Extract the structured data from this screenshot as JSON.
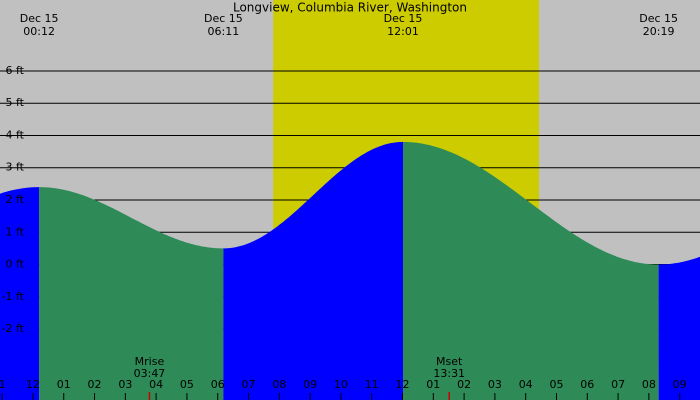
{
  "chart_data": {
    "type": "tide",
    "title": "Longview, Columbia River, Washington",
    "background": "#c0c0c0",
    "daylight_color": "#cccc00",
    "rising_color": "#0000ff",
    "falling_color": "#2e8b57",
    "daylight": [
      7.8,
      16.43
    ],
    "xlim": [
      -1.07,
      21.66
    ],
    "ylim": [
      -4.2,
      8.2
    ],
    "yticks": [
      {
        "value": 6,
        "label": "6 ft"
      },
      {
        "value": 5,
        "label": "5 ft"
      },
      {
        "value": 4,
        "label": "4 ft"
      },
      {
        "value": 3,
        "label": "3 ft"
      },
      {
        "value": 2,
        "label": "2 ft"
      },
      {
        "value": 1,
        "label": "1 ft"
      },
      {
        "value": 0,
        "label": "0 ft"
      },
      {
        "value": -1,
        "label": "-1 ft"
      },
      {
        "value": -2,
        "label": "-2 ft"
      }
    ],
    "xticks": [
      {
        "value": -1,
        "label": "1"
      },
      {
        "value": 0,
        "label": "12"
      },
      {
        "value": 1,
        "label": "01"
      },
      {
        "value": 2,
        "label": "02"
      },
      {
        "value": 3,
        "label": "03"
      },
      {
        "value": 4,
        "label": "04"
      },
      {
        "value": 5,
        "label": "05"
      },
      {
        "value": 6,
        "label": "06"
      },
      {
        "value": 7,
        "label": "07"
      },
      {
        "value": 8,
        "label": "08"
      },
      {
        "value": 9,
        "label": "09"
      },
      {
        "value": 10,
        "label": "10"
      },
      {
        "value": 11,
        "label": "11"
      },
      {
        "value": 12,
        "label": "12"
      },
      {
        "value": 13,
        "label": "01"
      },
      {
        "value": 14,
        "label": "02"
      },
      {
        "value": 15,
        "label": "03"
      },
      {
        "value": 16,
        "label": "04"
      },
      {
        "value": 17,
        "label": "05"
      },
      {
        "value": 18,
        "label": "06"
      },
      {
        "value": 19,
        "label": "07"
      },
      {
        "value": 20,
        "label": "08"
      },
      {
        "value": 21,
        "label": "09"
      }
    ],
    "extremes": [
      {
        "date": "Dec 15",
        "time": "00:12",
        "height": 2.4
      },
      {
        "date": "Dec 15",
        "time": "06:11",
        "height": 0.5
      },
      {
        "date": "Dec 15",
        "time": "12:01",
        "height": 3.8
      },
      {
        "date": "Dec 15",
        "time": "20:19",
        "height": 0.0
      }
    ],
    "moon": [
      {
        "label": "Mrise",
        "time": "03:47"
      },
      {
        "label": "Mset",
        "time": "13:31"
      }
    ]
  }
}
